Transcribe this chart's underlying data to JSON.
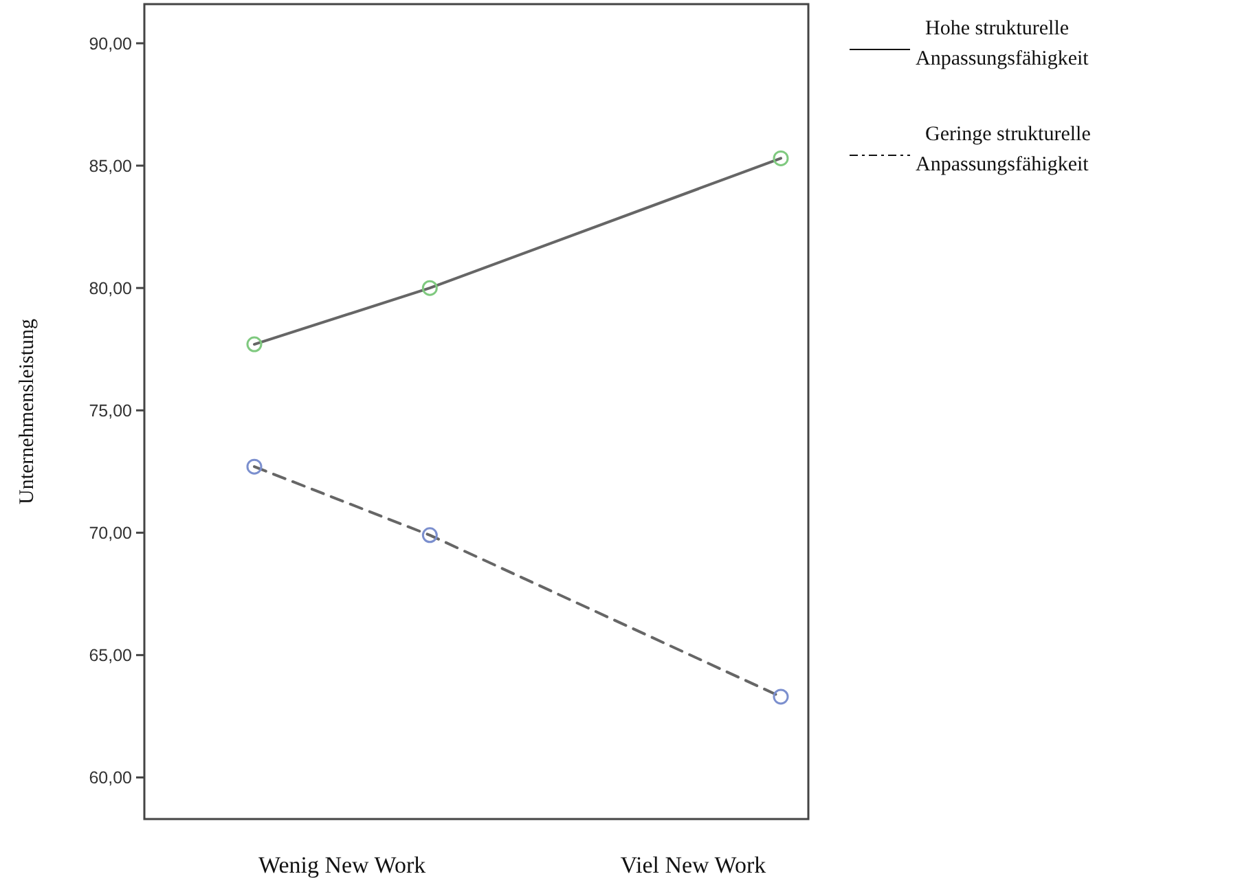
{
  "chart_data": {
    "type": "line",
    "ylabel": "Unternehmensleistung",
    "categories": [
      null,
      "Wenig New Work",
      null,
      null,
      null,
      "Viel New Work",
      null
    ],
    "ylim": [
      58.3,
      91.6
    ],
    "yticks": [
      {
        "value": 60,
        "label": "60,00"
      },
      {
        "value": 65,
        "label": "65,00"
      },
      {
        "value": 70,
        "label": "70,00"
      },
      {
        "value": 75,
        "label": "75,00"
      },
      {
        "value": 80,
        "label": "80,00"
      },
      {
        "value": 85,
        "label": "85,00"
      },
      {
        "value": 90,
        "label": "90,00"
      }
    ],
    "legend": "top right",
    "marker": "circle",
    "grid": false,
    "series": [
      {
        "name": "Hohe strukturelle Anpassungsfähigkeit",
        "color": "#666666",
        "colors": [
          "#7fc97f",
          null,
          "#7fc97f",
          null,
          null,
          null,
          "#7fc97f"
        ],
        "line_style": "solid",
        "values": [
          77.7,
          null,
          80.0,
          null,
          null,
          null,
          85.3
        ]
      },
      {
        "name": "Geringe strukturelle Anpassungsfähigkeit",
        "color": "#666666",
        "colors": [
          "#7b8fce",
          null,
          "#7b8fce",
          null,
          null,
          null,
          "#7b8fce"
        ],
        "line_style": "dashed",
        "values": [
          72.7,
          null,
          69.9,
          null,
          null,
          null,
          63.3
        ]
      }
    ]
  }
}
